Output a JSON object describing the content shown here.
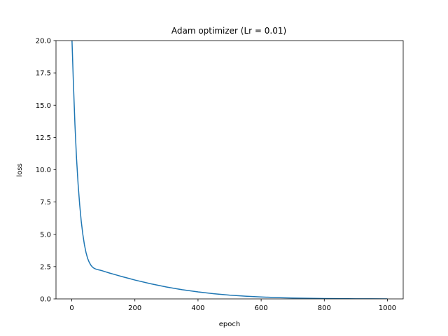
{
  "chart_data": {
    "type": "line",
    "title": "Adam optimizer (Lr = 0.01)",
    "xlabel": "epoch",
    "ylabel": "loss",
    "xlim": [
      -50,
      1050
    ],
    "ylim": [
      0,
      20
    ],
    "xticks": [
      0,
      200,
      400,
      600,
      800,
      1000
    ],
    "xtick_labels": [
      "0",
      "200",
      "400",
      "600",
      "800",
      "1000"
    ],
    "yticks": [
      0,
      2.5,
      5,
      7.5,
      10,
      12.5,
      15,
      17.5,
      20
    ],
    "ytick_labels": [
      "0.0",
      "2.5",
      "5.0",
      "7.5",
      "10.0",
      "12.5",
      "15.0",
      "17.5",
      "20.0"
    ],
    "grid": false,
    "series": [
      {
        "color": "#1f77b4",
        "x": [
          0,
          5,
          10,
          15,
          20,
          25,
          30,
          35,
          40,
          45,
          50,
          55,
          60,
          65,
          70,
          75,
          80,
          85,
          90,
          95,
          100,
          120,
          140,
          160,
          180,
          200,
          250,
          300,
          350,
          400,
          450,
          500,
          550,
          600,
          650,
          700,
          750,
          800,
          850,
          900,
          950,
          1000
        ],
        "y": [
          20.5,
          16.8,
          13.5,
          10.9,
          8.9,
          7.3,
          6.0,
          5.0,
          4.2,
          3.6,
          3.15,
          2.85,
          2.63,
          2.48,
          2.38,
          2.32,
          2.28,
          2.25,
          2.22,
          2.19,
          2.15,
          2.0,
          1.86,
          1.72,
          1.59,
          1.46,
          1.17,
          0.92,
          0.71,
          0.54,
          0.4,
          0.29,
          0.21,
          0.15,
          0.1,
          0.07,
          0.05,
          0.03,
          0.02,
          0.01,
          0.005,
          0.002
        ]
      }
    ]
  }
}
